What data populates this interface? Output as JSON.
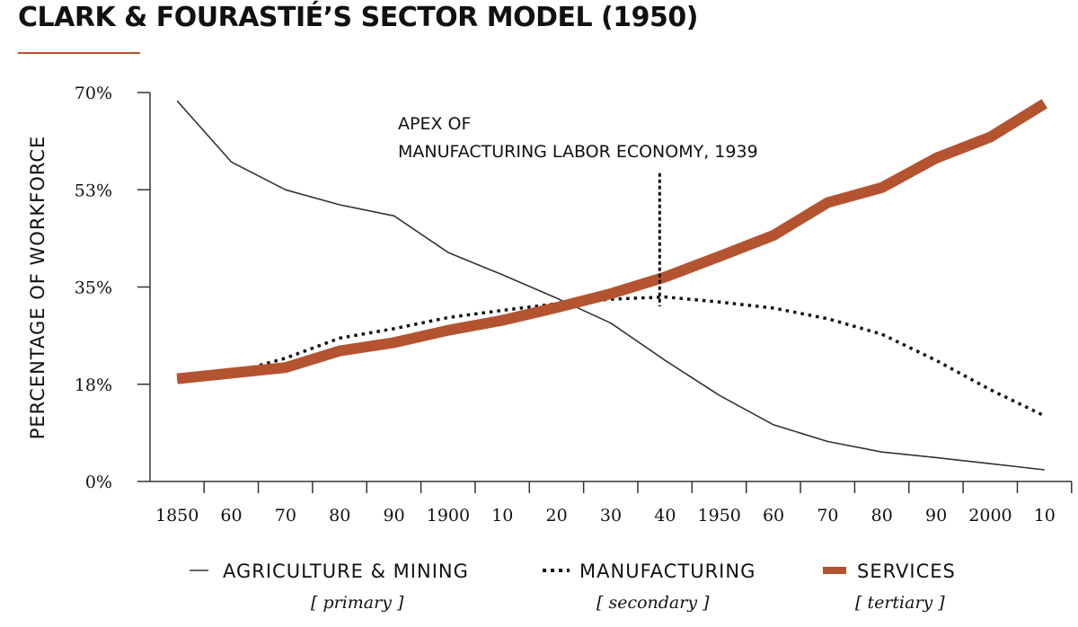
{
  "title": "CLARK & FOURASTIÉ’S SECTOR MODEL (1950)",
  "colors": {
    "accent": "#b4532f",
    "ink": "#333333"
  },
  "chart_data": {
    "type": "line",
    "title": "CLARK & FOURASTIÉ’S SECTOR MODEL (1950)",
    "xlabel": "",
    "ylabel": "PERCENTAGE OF WORKFORCE",
    "x_ticks": [
      1850,
      1860,
      1870,
      1880,
      1890,
      1900,
      1910,
      1920,
      1930,
      1940,
      1950,
      1960,
      1970,
      1980,
      1990,
      2000,
      2010
    ],
    "x_tick_labels": [
      "1850",
      "60",
      "70",
      "80",
      "90",
      "1900",
      "10",
      "20",
      "30",
      "40",
      "1950",
      "60",
      "70",
      "80",
      "90",
      "2000",
      "10"
    ],
    "xlim": [
      1845,
      2015
    ],
    "ylim": [
      0,
      70
    ],
    "y_ticks": [
      0,
      17.5,
      35,
      52.5,
      70
    ],
    "y_tick_labels": [
      "0%",
      "18%",
      "35%",
      "53%",
      "70%"
    ],
    "series": [
      {
        "name": "AGRICULTURE & MINING",
        "sublabel": "[ primary ]",
        "style": "thin",
        "x": [
          1850,
          1860,
          1870,
          1880,
          1890,
          1900,
          1910,
          1920,
          1930,
          1940,
          1950,
          1960,
          1970,
          1980,
          1990,
          2000,
          2010
        ],
        "values": [
          68.5,
          57.5,
          52.5,
          49.8,
          47.8,
          41.2,
          37.2,
          33.0,
          28.5,
          21.8,
          15.5,
          10.2,
          7.2,
          5.3,
          4.3,
          3.2,
          2.1
        ]
      },
      {
        "name": "MANUFACTURING",
        "sublabel": "[ secondary ]",
        "style": "dotted",
        "x": [
          1850,
          1860,
          1870,
          1880,
          1890,
          1900,
          1910,
          1920,
          1930,
          1940,
          1950,
          1960,
          1970,
          1980,
          1990,
          2000,
          2010
        ],
        "values": [
          18.3,
          19.5,
          22.2,
          25.8,
          27.5,
          29.5,
          30.8,
          32.0,
          32.8,
          33.2,
          32.3,
          31.2,
          29.3,
          26.5,
          21.8,
          16.5,
          11.8
        ]
      },
      {
        "name": "SERVICES",
        "sublabel": "[ tertiary ]",
        "style": "thick",
        "x": [
          1850,
          1860,
          1870,
          1880,
          1890,
          1900,
          1910,
          1920,
          1930,
          1940,
          1950,
          1960,
          1970,
          1980,
          1990,
          2000,
          2010
        ],
        "values": [
          18.5,
          19.5,
          20.5,
          23.5,
          25.0,
          27.2,
          29.0,
          31.3,
          33.8,
          36.8,
          40.5,
          44.3,
          50.2,
          52.9,
          58.2,
          62.0,
          68.0
        ]
      }
    ],
    "annotation": {
      "x": 1939,
      "y_range": [
        31.5,
        55.5
      ],
      "text_line1": "APEX OF",
      "text_line2": "MANUFACTURING LABOR ECONOMY, 1939"
    },
    "legend_position": "bottom"
  }
}
